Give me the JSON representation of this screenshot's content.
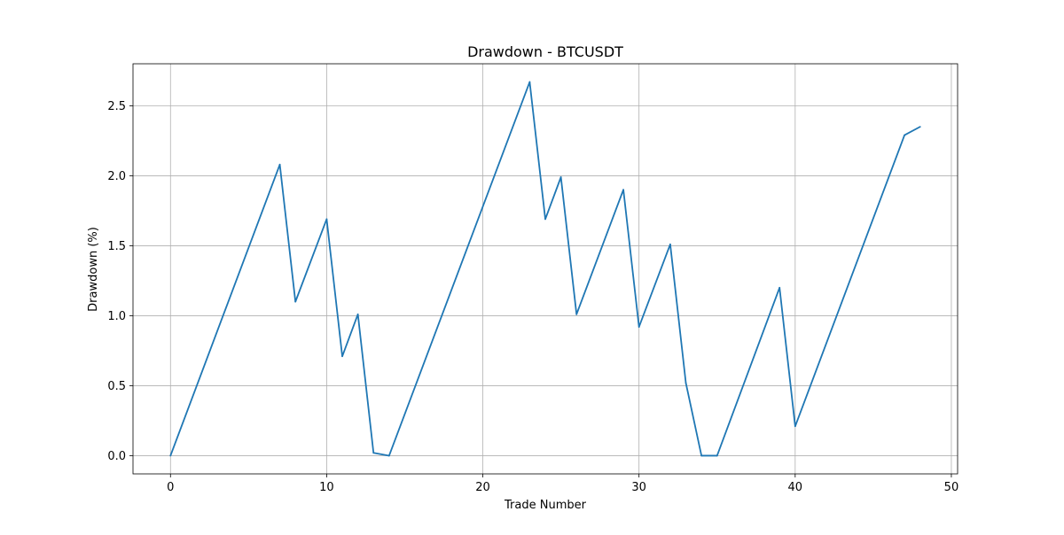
{
  "chart_data": {
    "type": "line",
    "title": "Drawdown - BTCUSDT",
    "xlabel": "Trade Number",
    "ylabel": "Drawdown (%)",
    "xlim": [
      -2.4,
      50.4
    ],
    "ylim": [
      -0.13,
      2.8
    ],
    "xticks": [
      0,
      10,
      20,
      30,
      40,
      50
    ],
    "yticks": [
      0.0,
      0.5,
      1.0,
      1.5,
      2.0,
      2.5
    ],
    "xtick_labels": [
      "0",
      "10",
      "20",
      "30",
      "40",
      "50"
    ],
    "ytick_labels": [
      "0.0",
      "0.5",
      "1.0",
      "1.5",
      "2.0",
      "2.5"
    ],
    "grid": true,
    "line_color": "#1f77b4",
    "series": [
      {
        "x": [
          0,
          7,
          8,
          10,
          11,
          12,
          13,
          14,
          23,
          24,
          25,
          26,
          29,
          30,
          32,
          33,
          34,
          35,
          39,
          40,
          47,
          48
        ],
        "y": [
          0.0,
          2.08,
          1.1,
          1.69,
          0.71,
          1.01,
          0.02,
          0.0,
          2.67,
          1.69,
          1.99,
          1.01,
          1.9,
          0.92,
          1.51,
          0.52,
          0.0,
          0.0,
          1.2,
          0.21,
          2.29,
          2.35
        ]
      }
    ]
  }
}
